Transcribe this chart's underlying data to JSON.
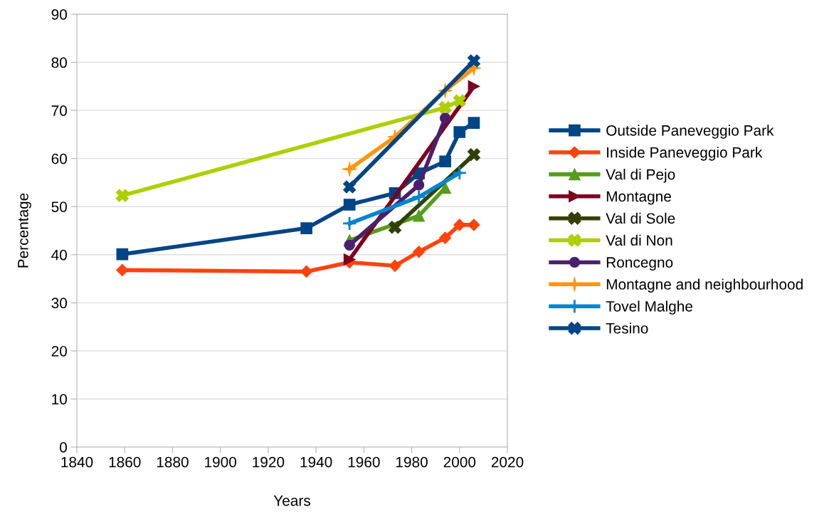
{
  "chart_data": {
    "type": "line",
    "xlabel": "Years",
    "ylabel": "Percentage",
    "xlim": [
      1840,
      2020
    ],
    "xticks": [
      1840,
      1860,
      1880,
      1900,
      1920,
      1940,
      1960,
      1980,
      2000,
      2020
    ],
    "ylim": [
      0,
      90
    ],
    "yticks": [
      0,
      10,
      20,
      30,
      40,
      50,
      60,
      70,
      80,
      90
    ],
    "grid": "y",
    "legend": "right",
    "line_style": "solid",
    "series": [
      {
        "name": "Outside Paneveggio Park",
        "color": "#004586",
        "marker": "square",
        "x": [
          1859,
          1936,
          1954,
          1973,
          1983,
          1994,
          2000,
          2006
        ],
        "values": [
          40.1,
          45.5,
          50.4,
          52.8,
          56.9,
          59.4,
          65.5,
          67.4
        ]
      },
      {
        "name": "Inside Paneveggio Park",
        "color": "#ff420e",
        "marker": "diamond",
        "x": [
          1859,
          1936,
          1954,
          1973,
          1983,
          1994,
          2000,
          2006
        ],
        "values": [
          36.8,
          36.5,
          38.4,
          37.7,
          40.6,
          43.5,
          46.2,
          46.2
        ]
      },
      {
        "name": "Val di Pejo",
        "color": "#579d1c",
        "marker": "triangle",
        "x": [
          1954,
          1983,
          1994
        ],
        "values": [
          43.0,
          48.1,
          53.9
        ]
      },
      {
        "name": "Montagne",
        "color": "#7e0021",
        "marker": "triangle_right",
        "x": [
          1954,
          2006
        ],
        "values": [
          39.0,
          75.0
        ]
      },
      {
        "name": "Val di Sole",
        "color": "#314004",
        "marker": "cross",
        "x": [
          1973,
          2006
        ],
        "values": [
          45.7,
          60.8
        ]
      },
      {
        "name": "Val di Non",
        "color": "#aecf00",
        "marker": "cross",
        "x": [
          1859,
          1994,
          2000
        ],
        "values": [
          52.3,
          70.6,
          72.0
        ]
      },
      {
        "name": "Roncegno",
        "color": "#4b1f6f",
        "marker": "circle",
        "x": [
          1954,
          1983,
          1994
        ],
        "values": [
          42.0,
          54.5,
          68.4
        ]
      },
      {
        "name": "Montagne and neighbourhood",
        "color": "#ff950e",
        "marker": "star",
        "x": [
          1954,
          1973,
          1994,
          2006
        ],
        "values": [
          57.8,
          64.5,
          74.1,
          78.8
        ]
      },
      {
        "name": "Tovel Malghe",
        "color": "#0084d1",
        "marker": "plus",
        "x": [
          1954,
          1983,
          2000
        ],
        "values": [
          46.5,
          52.0,
          57.0
        ]
      },
      {
        "name": "Tesino",
        "color": "#004586",
        "marker": "cross",
        "x": [
          1954,
          2006
        ],
        "values": [
          54.1,
          80.3
        ]
      }
    ]
  }
}
